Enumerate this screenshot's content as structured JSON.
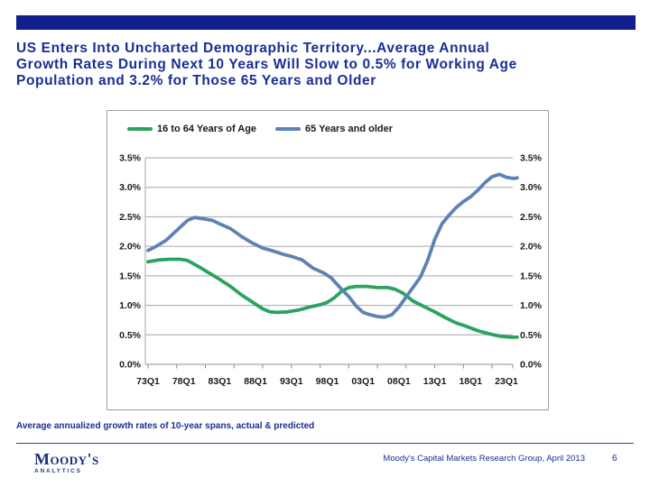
{
  "slide": {
    "title_lines": [
      "US Enters Into Uncharted Demographic Territory...Average Annual",
      "Growth Rates During Next 10 Years Will Slow to 0.5% for Working Age",
      "Population and 3.2% for Those 65 Years and Older"
    ],
    "caption": "Average annualized growth rates of 10-year spans, actual & predicted",
    "footer": {
      "logo_main": "Moody's",
      "logo_sub": "ANALYTICS",
      "source": "Moody's Capital Markets Research Group,  April 2013",
      "page": "6"
    }
  },
  "colors": {
    "accent_bar": "#111e8c",
    "title_text": "#1a2d96",
    "green": "#2aa35e",
    "blue": "#5e82b4",
    "grid": "#a6a6a6",
    "axis": "#8c8c8c",
    "tick_text": "#1a1a1a"
  },
  "chart_data": {
    "type": "line",
    "title": "",
    "xlabel": "",
    "ylabel": "",
    "grid": true,
    "legend_position": "top-left-inside",
    "ylim": [
      0,
      3.5
    ],
    "x_range_years": [
      1973,
      2024.5
    ],
    "y_ticks": [
      {
        "value": 0.0,
        "label": "0.0%"
      },
      {
        "value": 0.5,
        "label": "0.5%"
      },
      {
        "value": 1.0,
        "label": "1.0%"
      },
      {
        "value": 1.5,
        "label": "1.5%"
      },
      {
        "value": 2.0,
        "label": "2.0%"
      },
      {
        "value": 2.5,
        "label": "2.5%"
      },
      {
        "value": 3.0,
        "label": "3.0%"
      },
      {
        "value": 3.5,
        "label": "3.5%"
      }
    ],
    "x_ticks": [
      {
        "year": 1973,
        "label": "73Q1"
      },
      {
        "year": 1978,
        "label": "78Q1"
      },
      {
        "year": 1983,
        "label": "83Q1"
      },
      {
        "year": 1988,
        "label": "88Q1"
      },
      {
        "year": 1993,
        "label": "93Q1"
      },
      {
        "year": 1998,
        "label": "98Q1"
      },
      {
        "year": 2003,
        "label": "03Q1"
      },
      {
        "year": 2008,
        "label": "08Q1"
      },
      {
        "year": 2013,
        "label": "13Q1"
      },
      {
        "year": 2018,
        "label": "18Q1"
      },
      {
        "year": 2023,
        "label": "23Q1"
      }
    ],
    "x_minor_tick_years": [
      1973,
      1977,
      1981,
      1985,
      1989,
      1993,
      1997,
      2001,
      2005,
      2009,
      2013,
      2017,
      2021,
      2024.5
    ],
    "legend": [
      {
        "label": "16 to 64 Years of Age",
        "color_key": "green"
      },
      {
        "label": "65 Years and older",
        "color_key": "blue"
      }
    ],
    "series": [
      {
        "id": "16-to-64-years",
        "name": "16 to 64 Years of Age",
        "color_key": "green",
        "points": [
          [
            1973,
            1.74
          ],
          [
            1974.5,
            1.77
          ],
          [
            1976,
            1.78
          ],
          [
            1977.5,
            1.78
          ],
          [
            1978.5,
            1.76
          ],
          [
            1980,
            1.66
          ],
          [
            1981.5,
            1.55
          ],
          [
            1983,
            1.44
          ],
          [
            1984.5,
            1.32
          ],
          [
            1986,
            1.18
          ],
          [
            1987.5,
            1.06
          ],
          [
            1989,
            0.94
          ],
          [
            1990,
            0.89
          ],
          [
            1991,
            0.88
          ],
          [
            1992.5,
            0.89
          ],
          [
            1994,
            0.92
          ],
          [
            1995.5,
            0.97
          ],
          [
            1997,
            1.01
          ],
          [
            1998,
            1.05
          ],
          [
            1999,
            1.13
          ],
          [
            2000,
            1.24
          ],
          [
            2001,
            1.3
          ],
          [
            2002,
            1.32
          ],
          [
            2003.5,
            1.32
          ],
          [
            2005,
            1.3
          ],
          [
            2006.5,
            1.3
          ],
          [
            2007.5,
            1.27
          ],
          [
            2008.5,
            1.21
          ],
          [
            2010,
            1.07
          ],
          [
            2011.5,
            0.98
          ],
          [
            2013,
            0.89
          ],
          [
            2014.5,
            0.79
          ],
          [
            2016,
            0.7
          ],
          [
            2017.5,
            0.64
          ],
          [
            2019,
            0.57
          ],
          [
            2020.5,
            0.52
          ],
          [
            2022,
            0.48
          ],
          [
            2023.5,
            0.46
          ],
          [
            2024.5,
            0.46
          ]
        ]
      },
      {
        "id": "65-and-older",
        "name": "65 Years and older",
        "color_key": "blue",
        "points": [
          [
            1973,
            1.93
          ],
          [
            1974,
            1.99
          ],
          [
            1975.5,
            2.1
          ],
          [
            1977,
            2.27
          ],
          [
            1978.5,
            2.44
          ],
          [
            1979.5,
            2.49
          ],
          [
            1980.5,
            2.47
          ],
          [
            1982,
            2.44
          ],
          [
            1983,
            2.38
          ],
          [
            1984.5,
            2.3
          ],
          [
            1986,
            2.17
          ],
          [
            1987.5,
            2.06
          ],
          [
            1989,
            1.97
          ],
          [
            1990.5,
            1.92
          ],
          [
            1992,
            1.86
          ],
          [
            1993,
            1.83
          ],
          [
            1994.5,
            1.77
          ],
          [
            1996,
            1.63
          ],
          [
            1997.5,
            1.55
          ],
          [
            1998.5,
            1.47
          ],
          [
            2000,
            1.27
          ],
          [
            2001,
            1.15
          ],
          [
            2002,
            0.99
          ],
          [
            2003,
            0.88
          ],
          [
            2004,
            0.84
          ],
          [
            2005,
            0.81
          ],
          [
            2006,
            0.8
          ],
          [
            2007,
            0.84
          ],
          [
            2008,
            0.97
          ],
          [
            2009,
            1.14
          ],
          [
            2010,
            1.31
          ],
          [
            2011,
            1.48
          ],
          [
            2012,
            1.76
          ],
          [
            2013,
            2.12
          ],
          [
            2014,
            2.38
          ],
          [
            2015,
            2.53
          ],
          [
            2016,
            2.66
          ],
          [
            2017,
            2.76
          ],
          [
            2018,
            2.84
          ],
          [
            2019,
            2.95
          ],
          [
            2020,
            3.08
          ],
          [
            2021,
            3.18
          ],
          [
            2022,
            3.22
          ],
          [
            2023,
            3.17
          ],
          [
            2024,
            3.15
          ],
          [
            2024.5,
            3.16
          ]
        ]
      }
    ]
  }
}
